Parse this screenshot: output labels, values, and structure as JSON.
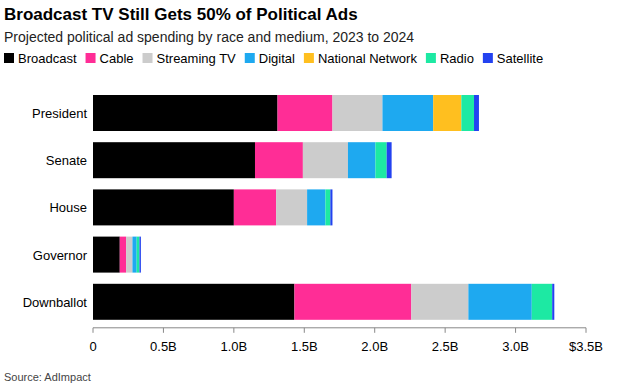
{
  "chart_data": {
    "type": "bar",
    "orientation": "horizontal",
    "stacked": true,
    "title": "Broadcast TV Still Gets 50% of Political Ads",
    "subtitle": "Projected political ad spending by race and medium, 2023 to 2024",
    "source": "Source: AdImpact",
    "categories": [
      "President",
      "Senate",
      "House",
      "Governor",
      "Downballot"
    ],
    "series": [
      {
        "name": "Broadcast",
        "color": "#000000",
        "values": [
          1.31,
          1.15,
          1.0,
          0.19,
          1.43
        ]
      },
      {
        "name": "Cable",
        "color": "#ff2d96",
        "values": [
          0.39,
          0.34,
          0.3,
          0.045,
          0.83
        ]
      },
      {
        "name": "Streaming TV",
        "color": "#cccccc",
        "values": [
          0.355,
          0.32,
          0.22,
          0.045,
          0.405
        ]
      },
      {
        "name": "Digital",
        "color": "#1ea9f0",
        "values": [
          0.36,
          0.195,
          0.13,
          0.03,
          0.45
        ]
      },
      {
        "name": "National Network",
        "color": "#ffbf1f",
        "values": [
          0.2,
          0,
          0,
          0,
          0
        ]
      },
      {
        "name": "Radio",
        "color": "#1de9a3",
        "values": [
          0.09,
          0.08,
          0.035,
          0.02,
          0.145
        ]
      },
      {
        "name": "Satellite",
        "color": "#2342f0",
        "values": [
          0.035,
          0.035,
          0.015,
          0.01,
          0.015
        ]
      }
    ],
    "xlim": [
      0,
      3.5
    ],
    "xticks": [
      0,
      {
        "value": 0.5,
        "label": "0.5B"
      },
      {
        "value": 1.0,
        "label": "1.0B"
      },
      {
        "value": 1.5,
        "label": "1.5B"
      },
      {
        "value": 2.0,
        "label": "2.0B"
      },
      {
        "value": 2.5,
        "label": "2.5B"
      },
      {
        "value": 3.0,
        "label": "3.0B"
      },
      {
        "value": 3.5,
        "label": "$3.5B"
      }
    ],
    "grid": false,
    "legend": "top"
  }
}
